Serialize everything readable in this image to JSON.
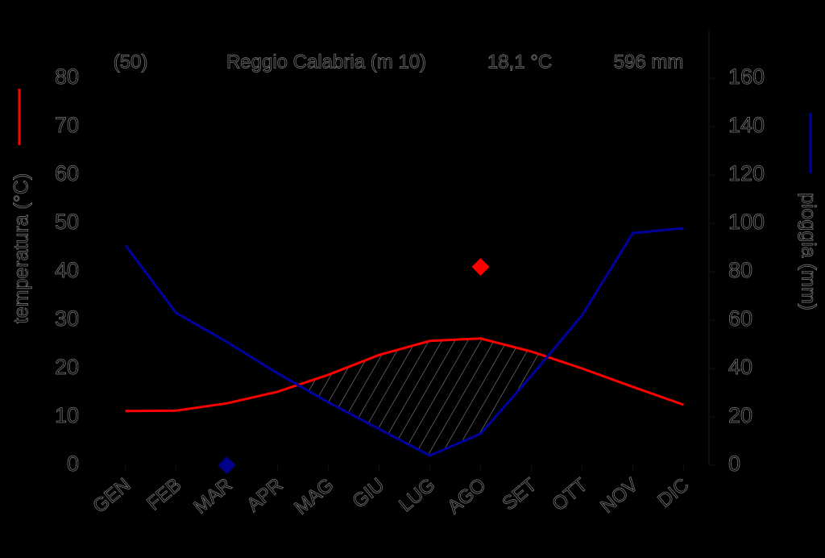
{
  "chart_data": {
    "type": "climate",
    "header": [
      "(50)",
      "Reggio Calabria  (m 10)",
      "18,1 °C",
      "596 mm"
    ],
    "ylabel": "temperatura (°C)",
    "y2label": "pioggia (mm)",
    "categories": [
      "GEN",
      "FEB",
      "MAR",
      "APR",
      "MAG",
      "GIU",
      "LUG",
      "AGO",
      "SET",
      "OTT",
      "NOV",
      "DIC"
    ],
    "series": [
      {
        "color": "#ff0000",
        "values": [
          11.2,
          11.3,
          12.8,
          15.2,
          18.7,
          22.8,
          25.7,
          26.2,
          23.5,
          20.0,
          16.2,
          12.5
        ]
      },
      {
        "color": "#0000a0",
        "axis": "y2",
        "values": [
          91,
          63,
          51,
          38,
          26,
          15,
          4,
          13,
          37,
          62,
          96,
          98
        ]
      }
    ],
    "markers": [
      {
        "color": "#ff0000",
        "values": [
          null,
          null,
          null,
          null,
          null,
          null,
          null,
          41,
          null,
          null,
          null,
          null
        ]
      },
      {
        "color": "#00008b",
        "values": [
          null,
          null,
          0,
          null,
          null,
          null,
          null,
          null,
          null,
          null,
          null,
          null
        ]
      }
    ],
    "ylim": [
      0,
      80
    ],
    "yticks": [
      0,
      10,
      20,
      30,
      40,
      50,
      60,
      70,
      80
    ],
    "y2lim": [
      0,
      160
    ],
    "y2ticks": [
      0,
      20,
      40,
      60,
      80,
      100,
      120,
      140,
      160
    ]
  }
}
